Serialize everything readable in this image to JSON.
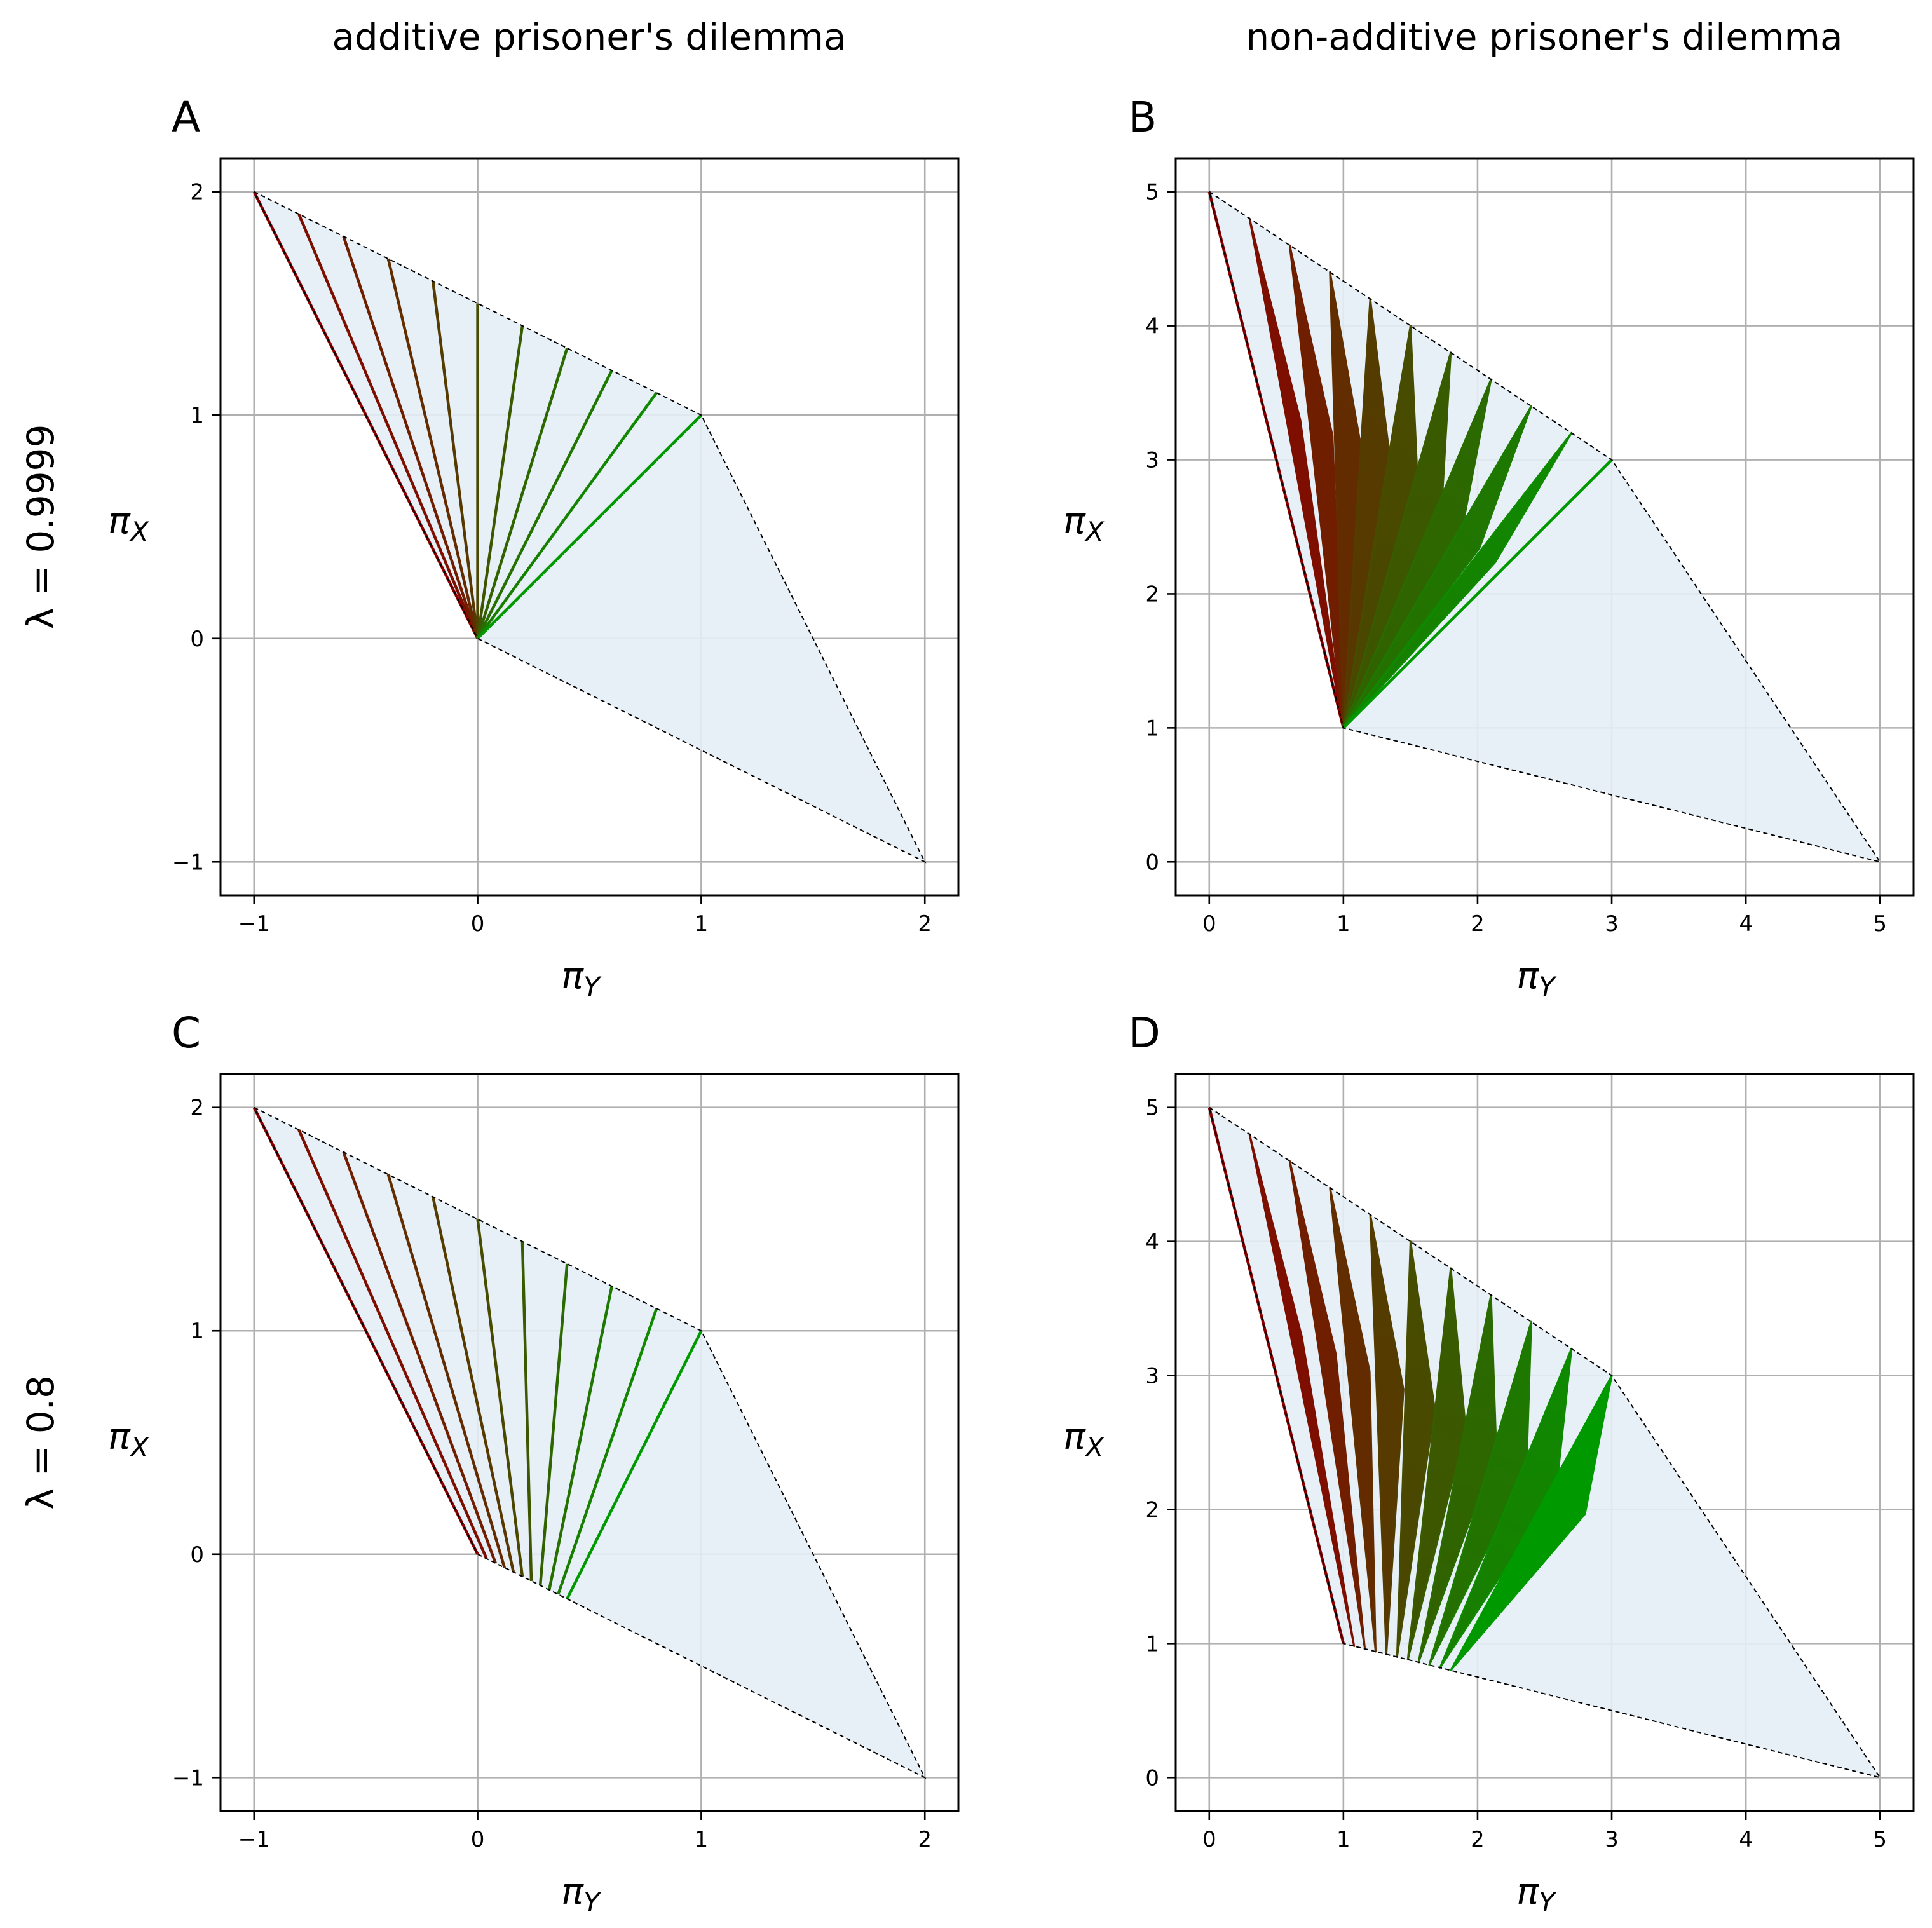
{
  "figure": {
    "column_titles": [
      "additive prisoner's dilemma",
      "non-additive prisoner's dilemma"
    ],
    "row_titles": [
      "λ = 0.9999",
      "λ = 0.8"
    ]
  },
  "colors": {
    "region_fill": "#e6eef6",
    "grid": "#b0b0b0",
    "boundary": "#000000",
    "gradient_start": "#8b0000",
    "gradient_end": "#009900"
  },
  "chart_data": [
    {
      "panel": "A",
      "type": "line",
      "title": "",
      "xlabel_main": "π",
      "xlabel_sub": "Y",
      "ylabel_main": "π",
      "ylabel_sub": "X",
      "xlim": [
        -1.15,
        2.15
      ],
      "ylim": [
        -1.15,
        2.15
      ],
      "xticks": [
        -1,
        0,
        1,
        2
      ],
      "yticks": [
        -1,
        0,
        1,
        2
      ],
      "xtick_labels": [
        "−1",
        "0",
        "1",
        "2"
      ],
      "ytick_labels": [
        "−1",
        "0",
        "1",
        "2"
      ],
      "grid": true,
      "feasible_region": [
        [
          -1,
          2
        ],
        [
          1,
          1
        ],
        [
          2,
          -1
        ],
        [
          0,
          0
        ]
      ],
      "fan": {
        "tips": [
          [
            -1,
            2
          ],
          [
            -0.8,
            1.9
          ],
          [
            -0.6,
            1.8
          ],
          [
            -0.4,
            1.7
          ],
          [
            -0.2,
            1.6
          ],
          [
            0,
            1.5
          ],
          [
            0.2,
            1.4
          ],
          [
            0.4,
            1.3
          ],
          [
            0.6,
            1.2
          ],
          [
            0.8,
            1.1
          ],
          [
            1,
            1
          ]
        ],
        "bases": [
          [
            0,
            0
          ],
          [
            0,
            0
          ],
          [
            0,
            0
          ],
          [
            0,
            0
          ],
          [
            0,
            0
          ],
          [
            0,
            0
          ],
          [
            0,
            0
          ],
          [
            0,
            0
          ],
          [
            0,
            0
          ],
          [
            0,
            0
          ],
          [
            0,
            0
          ]
        ],
        "knee_widths": [
          0,
          0,
          0,
          0,
          0,
          0,
          0,
          0,
          0,
          0,
          0
        ]
      }
    },
    {
      "panel": "B",
      "type": "line",
      "title": "",
      "xlabel_main": "π",
      "xlabel_sub": "Y",
      "ylabel_main": "π",
      "ylabel_sub": "X",
      "xlim": [
        -0.25,
        5.25
      ],
      "ylim": [
        -0.25,
        5.25
      ],
      "xticks": [
        0,
        1,
        2,
        3,
        4,
        5
      ],
      "yticks": [
        0,
        1,
        2,
        3,
        4,
        5
      ],
      "xtick_labels": [
        "0",
        "1",
        "2",
        "3",
        "4",
        "5"
      ],
      "ytick_labels": [
        "0",
        "1",
        "2",
        "3",
        "4",
        "5"
      ],
      "grid": true,
      "feasible_region": [
        [
          0,
          5
        ],
        [
          3,
          3
        ],
        [
          5,
          0
        ],
        [
          1,
          1
        ]
      ],
      "fan": {
        "tips": [
          [
            0,
            5
          ],
          [
            0.3,
            4.8
          ],
          [
            0.6,
            4.6
          ],
          [
            0.9,
            4.4
          ],
          [
            1.2,
            4.2
          ],
          [
            1.5,
            4.0
          ],
          [
            1.8,
            3.8
          ],
          [
            2.1,
            3.6
          ],
          [
            2.4,
            3.4
          ],
          [
            2.7,
            3.2
          ],
          [
            3,
            3
          ]
        ],
        "bases": [
          [
            1,
            1
          ],
          [
            1,
            1
          ],
          [
            1,
            1
          ],
          [
            1,
            1
          ],
          [
            1,
            1
          ],
          [
            1,
            1
          ],
          [
            1,
            1
          ],
          [
            1,
            1
          ],
          [
            1,
            1
          ],
          [
            1,
            1
          ],
          [
            1,
            1
          ]
        ],
        "knee_widths": [
          0,
          0.1,
          0.16,
          0.2,
          0.24,
          0.26,
          0.26,
          0.24,
          0.2,
          0.14,
          0
        ]
      }
    },
    {
      "panel": "C",
      "type": "line",
      "title": "",
      "xlabel_main": "π",
      "xlabel_sub": "Y",
      "ylabel_main": "π",
      "ylabel_sub": "X",
      "xlim": [
        -1.15,
        2.15
      ],
      "ylim": [
        -1.15,
        2.15
      ],
      "xticks": [
        -1,
        0,
        1,
        2
      ],
      "yticks": [
        -1,
        0,
        1,
        2
      ],
      "xtick_labels": [
        "−1",
        "0",
        "1",
        "2"
      ],
      "ytick_labels": [
        "−1",
        "0",
        "1",
        "2"
      ],
      "grid": true,
      "feasible_region": [
        [
          -1,
          2
        ],
        [
          1,
          1
        ],
        [
          2,
          -1
        ],
        [
          0,
          0
        ]
      ],
      "fan": {
        "tips": [
          [
            -1,
            2
          ],
          [
            -0.8,
            1.9
          ],
          [
            -0.6,
            1.8
          ],
          [
            -0.4,
            1.7
          ],
          [
            -0.2,
            1.6
          ],
          [
            0,
            1.5
          ],
          [
            0.2,
            1.4
          ],
          [
            0.4,
            1.3
          ],
          [
            0.6,
            1.2
          ],
          [
            0.8,
            1.1
          ],
          [
            1,
            1
          ]
        ],
        "bases": [
          [
            0,
            0
          ],
          [
            0.04,
            -0.02
          ],
          [
            0.08,
            -0.04
          ],
          [
            0.12,
            -0.06
          ],
          [
            0.16,
            -0.08
          ],
          [
            0.2,
            -0.1
          ],
          [
            0.24,
            -0.12
          ],
          [
            0.28,
            -0.14
          ],
          [
            0.32,
            -0.16
          ],
          [
            0.36,
            -0.18
          ],
          [
            0.4,
            -0.2
          ]
        ],
        "knee_widths": [
          0,
          0,
          0,
          0,
          0,
          0,
          0,
          0,
          0,
          0,
          0
        ]
      }
    },
    {
      "panel": "D",
      "type": "line",
      "title": "",
      "xlabel_main": "π",
      "xlabel_sub": "Y",
      "ylabel_main": "π",
      "ylabel_sub": "X",
      "xlim": [
        -0.25,
        5.25
      ],
      "ylim": [
        -0.25,
        5.25
      ],
      "xticks": [
        0,
        1,
        2,
        3,
        4,
        5
      ],
      "yticks": [
        0,
        1,
        2,
        3,
        4,
        5
      ],
      "xtick_labels": [
        "0",
        "1",
        "2",
        "3",
        "4",
        "5"
      ],
      "ytick_labels": [
        "0",
        "1",
        "2",
        "3",
        "4",
        "5"
      ],
      "grid": true,
      "feasible_region": [
        [
          0,
          5
        ],
        [
          3,
          3
        ],
        [
          5,
          0
        ],
        [
          1,
          1
        ]
      ],
      "fan": {
        "tips": [
          [
            0,
            5
          ],
          [
            0.3,
            4.8
          ],
          [
            0.6,
            4.6
          ],
          [
            0.9,
            4.4
          ],
          [
            1.2,
            4.2
          ],
          [
            1.5,
            4.0
          ],
          [
            1.8,
            3.8
          ],
          [
            2.1,
            3.6
          ],
          [
            2.4,
            3.4
          ],
          [
            2.7,
            3.2
          ],
          [
            3,
            3
          ]
        ],
        "bases": [
          [
            1,
            1
          ],
          [
            1.08,
            0.98
          ],
          [
            1.16,
            0.96
          ],
          [
            1.24,
            0.94
          ],
          [
            1.32,
            0.92
          ],
          [
            1.4,
            0.9
          ],
          [
            1.48,
            0.88
          ],
          [
            1.56,
            0.86
          ],
          [
            1.64,
            0.84
          ],
          [
            1.72,
            0.82
          ],
          [
            1.8,
            0.8
          ]
        ],
        "knee_widths": [
          0,
          0.08,
          0.12,
          0.16,
          0.2,
          0.22,
          0.24,
          0.26,
          0.28,
          0.3,
          0.32
        ]
      }
    }
  ]
}
